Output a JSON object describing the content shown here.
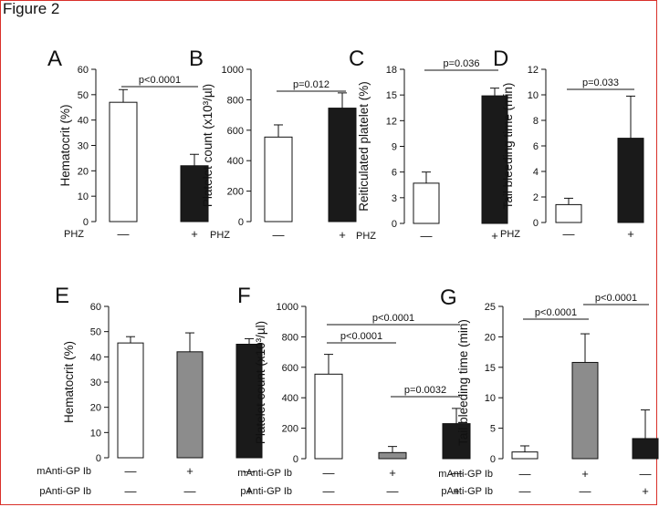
{
  "figure_title": "Figure 2",
  "colors": {
    "white_bar": "#ffffff",
    "black_bar": "#1a1a1a",
    "gray_bar": "#8c8c8c",
    "axis": "#111111",
    "frame": "#d9302a"
  },
  "chart_data": [
    {
      "panel": "A",
      "type": "bar",
      "ylabel": "Hematocrit (%)",
      "ylim": [
        0,
        60
      ],
      "yticks": [
        "0",
        "10",
        "20",
        "30",
        "40",
        "50",
        "60"
      ],
      "values": [
        47,
        22
      ],
      "errors": [
        5,
        4.5
      ],
      "fills": [
        "white",
        "black"
      ],
      "rows": [
        {
          "label": "PHZ",
          "marks": [
            "—",
            "+"
          ]
        }
      ],
      "comparisons": [
        {
          "from": 0,
          "to": 1,
          "text": "p<0.0001"
        }
      ]
    },
    {
      "panel": "B",
      "type": "bar",
      "ylabel": "Platelet count (x10³/µl)",
      "ylim": [
        0,
        1000
      ],
      "yticks": [
        "0",
        "200",
        "400",
        "600",
        "800",
        "1000"
      ],
      "values": [
        555,
        745
      ],
      "errors": [
        80,
        100
      ],
      "fills": [
        "white",
        "black"
      ],
      "rows": [
        {
          "label": "PHZ",
          "marks": [
            "—",
            "+"
          ]
        }
      ],
      "comparisons": [
        {
          "from": 0,
          "to": 1,
          "text": "p=0.012"
        }
      ]
    },
    {
      "panel": "C",
      "type": "bar",
      "ylabel": "Reiticulated platelet (%)",
      "ylim": [
        0,
        18
      ],
      "yticks": [
        "0",
        "3",
        "6",
        "9",
        "12",
        "15",
        "18"
      ],
      "values": [
        4.7,
        14.9
      ],
      "errors": [
        1.3,
        0.9
      ],
      "fills": [
        "white",
        "black"
      ],
      "rows": [
        {
          "label": "PHZ",
          "marks": [
            "—",
            "+"
          ]
        }
      ],
      "comparisons": [
        {
          "from": 0,
          "to": 1,
          "text": "p=0.036"
        }
      ]
    },
    {
      "panel": "D",
      "type": "bar",
      "ylabel": "Tail bleeding time (min)",
      "ylim": [
        0,
        12
      ],
      "yticks": [
        "0",
        "2",
        "4",
        "6",
        "8",
        "10",
        "12"
      ],
      "values": [
        1.4,
        6.6
      ],
      "errors": [
        0.5,
        3.3
      ],
      "fills": [
        "white",
        "black"
      ],
      "rows": [
        {
          "label": "PHZ",
          "marks": [
            "—",
            "+"
          ]
        }
      ],
      "comparisons": [
        {
          "from": 0,
          "to": 1,
          "text": "p=0.033"
        }
      ]
    },
    {
      "panel": "E",
      "type": "bar",
      "ylabel": "Hematocrit (%)",
      "ylim": [
        0,
        60
      ],
      "yticks": [
        "0",
        "10",
        "20",
        "30",
        "40",
        "50",
        "60"
      ],
      "values": [
        45.5,
        42,
        45
      ],
      "errors": [
        2.5,
        7.5,
        2.2
      ],
      "fills": [
        "white",
        "gray",
        "black"
      ],
      "rows": [
        {
          "label": "mAnti-GP Ib",
          "marks": [
            "—",
            "+",
            "—"
          ]
        },
        {
          "label": "pAnti-GP Ib",
          "marks": [
            "—",
            "—",
            "+"
          ]
        }
      ],
      "comparisons": []
    },
    {
      "panel": "F",
      "type": "bar",
      "ylabel": "Platelet count (x10³/µl)",
      "ylim": [
        0,
        1000
      ],
      "yticks": [
        "0",
        "200",
        "400",
        "600",
        "800",
        "1000"
      ],
      "values": [
        555,
        40,
        230
      ],
      "errors": [
        130,
        40,
        100
      ],
      "fills": [
        "white",
        "gray",
        "black"
      ],
      "rows": [
        {
          "label": "mAnti-GP Ib",
          "marks": [
            "—",
            "+",
            "—"
          ]
        },
        {
          "label": "pAnti-GP Ib",
          "marks": [
            "—",
            "—",
            "+"
          ]
        }
      ],
      "comparisons": [
        {
          "from": 0,
          "to": 2,
          "text": "p<0.0001"
        },
        {
          "from": 0,
          "to": 1,
          "text": "p<0.0001"
        },
        {
          "from": 1,
          "to": 2,
          "text": "p=0.0032"
        }
      ]
    },
    {
      "panel": "G",
      "type": "bar",
      "ylabel": "Tail bleeding time (min)",
      "ylim": [
        0,
        25
      ],
      "yticks": [
        "0",
        "5",
        "10",
        "15",
        "20",
        "25"
      ],
      "values": [
        1.1,
        15.8,
        3.3
      ],
      "errors": [
        1.0,
        4.7,
        4.7
      ],
      "fills": [
        "white",
        "gray",
        "black"
      ],
      "rows": [
        {
          "label": "mAnti-GP Ib",
          "marks": [
            "—",
            "+",
            "—"
          ]
        },
        {
          "label": "pAnti-GP Ib",
          "marks": [
            "—",
            "—",
            "+"
          ]
        }
      ],
      "comparisons": [
        {
          "from": 0,
          "to": 1,
          "text": "p<0.0001"
        },
        {
          "from": 1,
          "to": 2,
          "text": "p<0.0001"
        }
      ]
    }
  ]
}
